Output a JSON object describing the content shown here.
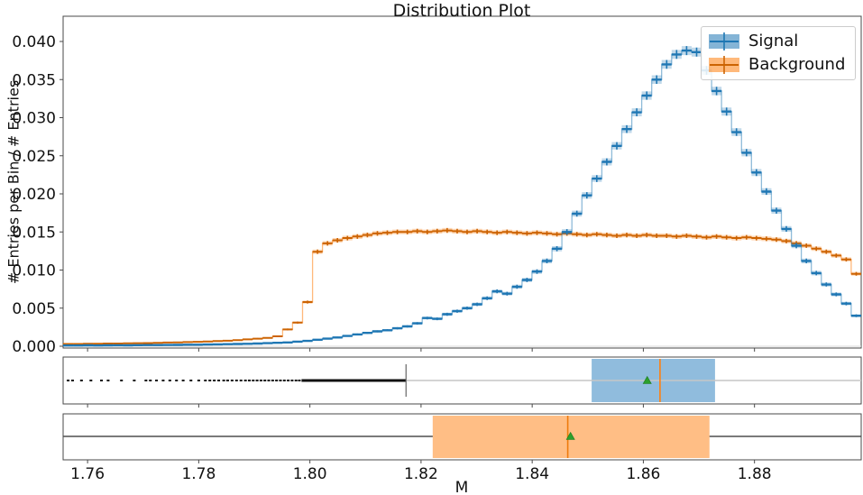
{
  "figure": {
    "title": "Distribution Plot",
    "xlabel": "M",
    "ylabel": "# Entries per Bin / # Entries"
  },
  "legend": {
    "position": "upper right",
    "items": [
      {
        "label": "Signal",
        "series": "signal"
      },
      {
        "label": "Background",
        "series": "background"
      }
    ]
  },
  "axes": {
    "xlim": [
      1.7556,
      1.8992
    ],
    "ylim": [
      0,
      0.0433
    ],
    "grid": false,
    "xticks": [
      1.76,
      1.78,
      1.8,
      1.82,
      1.84,
      1.86,
      1.88
    ],
    "xtick_labels": [
      "1.76",
      "1.78",
      "1.80",
      "1.82",
      "1.84",
      "1.86",
      "1.88"
    ],
    "yticks": [
      0,
      0.005,
      0.01,
      0.015,
      0.02,
      0.025,
      0.03,
      0.035,
      0.04
    ],
    "ytick_labels": [
      "0.000",
      "0.005",
      "0.010",
      "0.015",
      "0.020",
      "0.025",
      "0.030",
      "0.035",
      "0.040"
    ]
  },
  "colors": {
    "signal": "#1f77b4",
    "signal_band": "rgba(31,119,180,0.28)",
    "signal_step": "rgba(31,119,180,0.5)",
    "background_marker": "#cc6302",
    "background_band": "rgba(255,127,14,0.3)",
    "background_step": "rgba(255,127,14,0.55)",
    "background": "#ff7f0e",
    "median_signal": "#ff7f0e",
    "median_background": "#ee7b0d",
    "mean_marker": "#2ca02c",
    "whisker_signal": "#c6c6c6",
    "whisker_background": "#4f4f4f",
    "flier": "#111111",
    "spine": "#4a4a4a",
    "baseline": "#d8d8d8",
    "text": "#111111"
  },
  "chart_data": [
    {
      "type": "histogram",
      "series": "signal",
      "name": "Signal",
      "bin_start": 1.7556,
      "bin_width": 0.001795,
      "err_coeff": 9.5e-05,
      "values": [
        0.0001,
        0.0001,
        0.00012,
        0.0001,
        0.00012,
        0.00013,
        0.00012,
        0.00014,
        0.00015,
        0.00015,
        0.00017,
        0.00018,
        0.0002,
        0.0002,
        0.00022,
        0.00025,
        0.00027,
        0.0003,
        0.00032,
        0.00035,
        0.0004,
        0.00045,
        0.0005,
        0.0006,
        0.0007,
        0.00085,
        0.001,
        0.00115,
        0.00135,
        0.00155,
        0.00175,
        0.00195,
        0.0021,
        0.00235,
        0.0026,
        0.003,
        0.0037,
        0.0036,
        0.0042,
        0.0046,
        0.005,
        0.0055,
        0.0063,
        0.0072,
        0.0069,
        0.0078,
        0.0087,
        0.0098,
        0.0112,
        0.0128,
        0.015,
        0.0174,
        0.0198,
        0.022,
        0.0242,
        0.0263,
        0.0285,
        0.0307,
        0.0329,
        0.035,
        0.037,
        0.0383,
        0.0388,
        0.0386,
        0.0362,
        0.0335,
        0.0308,
        0.0281,
        0.0254,
        0.0228,
        0.0203,
        0.0178,
        0.0154,
        0.0132,
        0.0112,
        0.0096,
        0.0081,
        0.0068,
        0.0056,
        0.004
      ]
    },
    {
      "type": "histogram",
      "series": "background",
      "name": "Background",
      "bin_start": 1.7556,
      "bin_width": 0.001795,
      "err_coeff": 8e-05,
      "values": [
        0.0003,
        0.0003,
        0.00032,
        0.00033,
        0.00035,
        0.00036,
        0.00038,
        0.0004,
        0.00042,
        0.00045,
        0.00048,
        0.0005,
        0.00055,
        0.00058,
        0.00062,
        0.00068,
        0.00072,
        0.0008,
        0.0009,
        0.001,
        0.0011,
        0.0013,
        0.0022,
        0.0031,
        0.0058,
        0.0124,
        0.0135,
        0.0139,
        0.0142,
        0.0144,
        0.0146,
        0.0148,
        0.0149,
        0.015,
        0.015,
        0.0151,
        0.015,
        0.0151,
        0.0152,
        0.0151,
        0.015,
        0.0151,
        0.015,
        0.0149,
        0.015,
        0.0149,
        0.0148,
        0.0149,
        0.0148,
        0.0147,
        0.0148,
        0.0147,
        0.0146,
        0.0147,
        0.0146,
        0.0145,
        0.0146,
        0.0145,
        0.0146,
        0.0145,
        0.0145,
        0.0144,
        0.0145,
        0.0144,
        0.0143,
        0.0144,
        0.0143,
        0.0142,
        0.0143,
        0.0142,
        0.0141,
        0.014,
        0.0138,
        0.0135,
        0.0132,
        0.0128,
        0.0124,
        0.0119,
        0.0114,
        0.0095
      ]
    },
    {
      "type": "boxplot",
      "series": "signal",
      "name": "Signal",
      "whisker_lo": 1.8173,
      "q1": 1.8507,
      "median": 1.863,
      "mean": 1.8607,
      "q3": 1.8729,
      "whisker_hi": 1.8992,
      "flier_band": [
        1.7985,
        1.8173
      ],
      "fliers": [
        1.7565,
        1.7573,
        1.7589,
        1.7606,
        1.7625,
        1.7637,
        1.7661,
        1.7684,
        1.7705,
        1.7713,
        1.7724,
        1.7736,
        1.7748,
        1.776,
        1.7772,
        1.7786,
        1.78,
        1.7812,
        1.782,
        1.7828,
        1.7836,
        1.7845,
        1.7852,
        1.786,
        1.7868,
        1.7876,
        1.7884,
        1.7891,
        1.7898,
        1.7905,
        1.7912,
        1.7919,
        1.7926,
        1.7933,
        1.794,
        1.7947,
        1.7954,
        1.7961,
        1.7968,
        1.7975,
        1.7981
      ]
    },
    {
      "type": "boxplot",
      "series": "background",
      "name": "Background",
      "whisker_lo": 1.7556,
      "q1": 1.8221,
      "median": 1.8464,
      "mean": 1.8469,
      "q3": 1.8719,
      "whisker_hi": 1.8992,
      "flier_band": null,
      "fliers": []
    }
  ]
}
